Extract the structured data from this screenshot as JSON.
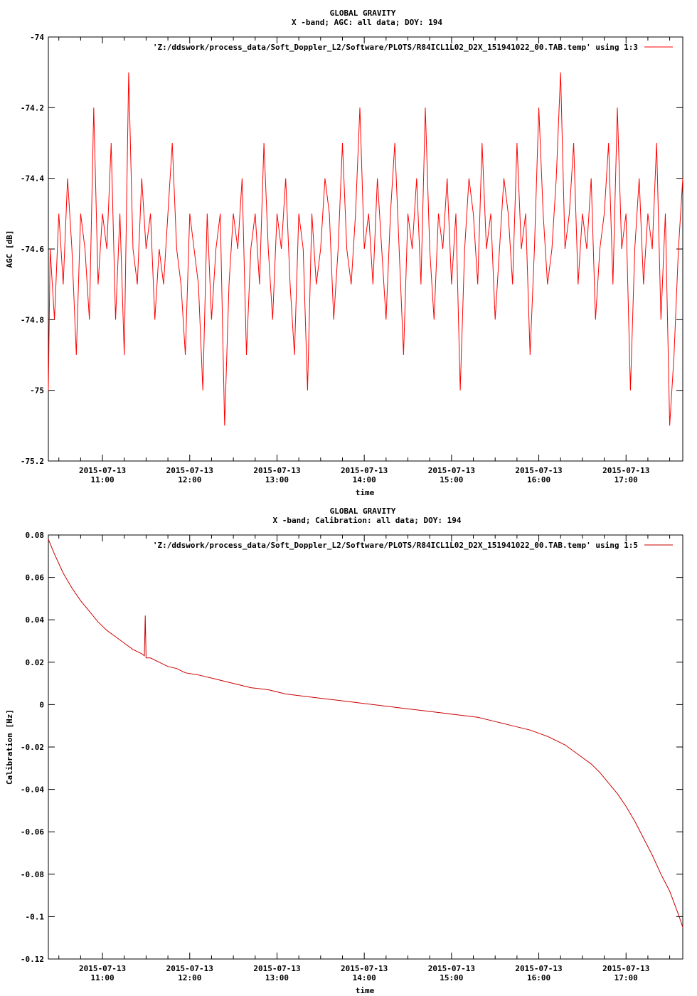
{
  "chart_data": [
    {
      "type": "line",
      "title": "GLOBAL GRAVITY",
      "subtitle": "X -band; AGC: all data; DOY: 194",
      "xlabel": "time",
      "ylabel": "AGC [dB]",
      "legend_entry": "'Z:/ddswork/process_data/Soft_Doppler_L2/Software/PLOTS/R84ICL1L02_D2X_151941022_00.TAB.temp' using 1:3",
      "legend_position": "top-right",
      "color": "#ff0000",
      "xlim_hours": [
        10.38,
        17.65
      ],
      "ylim": [
        -75.2,
        -74.0
      ],
      "yticks": [
        -74,
        -74.2,
        -74.4,
        -74.6,
        -74.8,
        -75,
        -75.2
      ],
      "ytick_labels": [
        "-74",
        "-74.2",
        "-74.4",
        "-74.6",
        "-74.8",
        "-75",
        "-75.2"
      ],
      "xticks_hours": [
        11,
        12,
        13,
        14,
        15,
        16,
        17
      ],
      "xtick_date": "2015-07-13",
      "xtick_times": [
        "11:00",
        "12:00",
        "13:00",
        "14:00",
        "15:00",
        "16:00",
        "17:00"
      ],
      "description_level": -74.6,
      "series": [
        {
          "x_hours": [
            10.38,
            10.4,
            10.45,
            10.5,
            10.55,
            10.6,
            10.65,
            10.7,
            10.75,
            10.8,
            10.85,
            10.9,
            10.95,
            11.0,
            11.05,
            11.1,
            11.15,
            11.2,
            11.25,
            11.3,
            11.35,
            11.4,
            11.45,
            11.5,
            11.55,
            11.6,
            11.65,
            11.7,
            11.75,
            11.8,
            11.85,
            11.9,
            11.95,
            12.0,
            12.05,
            12.1,
            12.15,
            12.2,
            12.25,
            12.3,
            12.35,
            12.4,
            12.45,
            12.5,
            12.55,
            12.6,
            12.65,
            12.7,
            12.75,
            12.8,
            12.85,
            12.9,
            12.95,
            13.0,
            13.05,
            13.1,
            13.15,
            13.2,
            13.25,
            13.3,
            13.35,
            13.4,
            13.45,
            13.5,
            13.55,
            13.6,
            13.65,
            13.7,
            13.75,
            13.8,
            13.85,
            13.9,
            13.95,
            14.0,
            14.05,
            14.1,
            14.15,
            14.2,
            14.25,
            14.3,
            14.35,
            14.4,
            14.45,
            14.5,
            14.55,
            14.6,
            14.65,
            14.7,
            14.75,
            14.8,
            14.85,
            14.9,
            14.95,
            15.0,
            15.05,
            15.1,
            15.15,
            15.2,
            15.25,
            15.3,
            15.35,
            15.4,
            15.45,
            15.5,
            15.55,
            15.6,
            15.65,
            15.7,
            15.75,
            15.8,
            15.85,
            15.9,
            15.95,
            16.0,
            16.05,
            16.1,
            16.15,
            16.2,
            16.25,
            16.3,
            16.35,
            16.4,
            16.45,
            16.5,
            16.55,
            16.6,
            16.65,
            16.7,
            16.75,
            16.8,
            16.85,
            16.9,
            16.95,
            17.0,
            17.05,
            17.1,
            17.15,
            17.2,
            17.25,
            17.3,
            17.35,
            17.4,
            17.45,
            17.5,
            17.55,
            17.6,
            17.65
          ],
          "values": [
            -75.0,
            -74.6,
            -74.8,
            -74.5,
            -74.7,
            -74.4,
            -74.6,
            -74.9,
            -74.5,
            -74.6,
            -74.8,
            -74.2,
            -74.7,
            -74.5,
            -74.6,
            -74.3,
            -74.8,
            -74.5,
            -74.9,
            -74.1,
            -74.6,
            -74.7,
            -74.4,
            -74.6,
            -74.5,
            -74.8,
            -74.6,
            -74.7,
            -74.5,
            -74.3,
            -74.6,
            -74.7,
            -74.9,
            -74.5,
            -74.6,
            -74.7,
            -75.0,
            -74.5,
            -74.8,
            -74.6,
            -74.5,
            -75.1,
            -74.7,
            -74.5,
            -74.6,
            -74.4,
            -74.9,
            -74.6,
            -74.5,
            -74.7,
            -74.3,
            -74.6,
            -74.8,
            -74.5,
            -74.6,
            -74.4,
            -74.7,
            -74.9,
            -74.5,
            -74.6,
            -75.0,
            -74.5,
            -74.7,
            -74.6,
            -74.4,
            -74.5,
            -74.8,
            -74.6,
            -74.3,
            -74.6,
            -74.7,
            -74.5,
            -74.2,
            -74.6,
            -74.5,
            -74.7,
            -74.4,
            -74.6,
            -74.8,
            -74.5,
            -74.3,
            -74.6,
            -74.9,
            -74.5,
            -74.6,
            -74.4,
            -74.7,
            -74.2,
            -74.6,
            -74.8,
            -74.5,
            -74.6,
            -74.4,
            -74.7,
            -74.5,
            -75.0,
            -74.6,
            -74.4,
            -74.5,
            -74.7,
            -74.3,
            -74.6,
            -74.5,
            -74.8,
            -74.6,
            -74.4,
            -74.5,
            -74.7,
            -74.3,
            -74.6,
            -74.5,
            -74.9,
            -74.6,
            -74.2,
            -74.5,
            -74.7,
            -74.6,
            -74.4,
            -74.1,
            -74.6,
            -74.5,
            -74.3,
            -74.7,
            -74.5,
            -74.6,
            -74.4,
            -74.8,
            -74.6,
            -74.5,
            -74.3,
            -74.7,
            -74.2,
            -74.6,
            -74.5,
            -75.0,
            -74.6,
            -74.4,
            -74.7,
            -74.5,
            -74.6,
            -74.3,
            -74.8,
            -74.5,
            -75.1,
            -74.9,
            -74.6,
            -74.4
          ]
        }
      ]
    },
    {
      "type": "line",
      "title": "GLOBAL GRAVITY",
      "subtitle": "X -band; Calibration: all data; DOY: 194",
      "xlabel": "time",
      "ylabel": "Calibration [Hz]",
      "legend_entry": "'Z:/ddswork/process_data/Soft_Doppler_L2/Software/PLOTS/R84ICL1L02_D2X_151941022_00.TAB.temp' using 1:5",
      "legend_position": "top-right",
      "color": "#cc0000",
      "xlim_hours": [
        10.38,
        17.65
      ],
      "ylim": [
        -0.12,
        0.08
      ],
      "yticks": [
        0.08,
        0.06,
        0.04,
        0.02,
        0,
        -0.02,
        -0.04,
        -0.06,
        -0.08,
        -0.1,
        -0.12
      ],
      "ytick_labels": [
        "0.08",
        "0.06",
        "0.04",
        "0.02",
        "0",
        "-0.02",
        "-0.04",
        "-0.06",
        "-0.08",
        "-0.1",
        "-0.12"
      ],
      "xticks_hours": [
        11,
        12,
        13,
        14,
        15,
        16,
        17
      ],
      "xtick_date": "2015-07-13",
      "xtick_times": [
        "11:00",
        "12:00",
        "13:00",
        "14:00",
        "15:00",
        "16:00",
        "17:00"
      ],
      "series": [
        {
          "x_hours": [
            10.38,
            10.45,
            10.55,
            10.65,
            10.75,
            10.85,
            10.95,
            11.05,
            11.15,
            11.25,
            11.35,
            11.45,
            11.48,
            11.49,
            11.5,
            11.51,
            11.55,
            11.65,
            11.75,
            11.85,
            11.95,
            12.1,
            12.3,
            12.5,
            12.7,
            12.9,
            13.1,
            13.3,
            13.5,
            13.7,
            13.9,
            14.1,
            14.3,
            14.5,
            14.7,
            14.9,
            15.1,
            15.3,
            15.5,
            15.7,
            15.9,
            16.1,
            16.3,
            16.5,
            16.6,
            16.7,
            16.8,
            16.9,
            17.0,
            17.1,
            17.2,
            17.3,
            17.4,
            17.5,
            17.6,
            17.65
          ],
          "values": [
            0.078,
            0.071,
            0.062,
            0.055,
            0.049,
            0.044,
            0.039,
            0.035,
            0.032,
            0.029,
            0.026,
            0.024,
            0.023,
            0.042,
            0.022,
            0.022,
            0.022,
            0.02,
            0.018,
            0.017,
            0.015,
            0.014,
            0.012,
            0.01,
            0.008,
            0.007,
            0.005,
            0.004,
            0.003,
            0.002,
            0.001,
            0.0,
            -0.001,
            -0.002,
            -0.003,
            -0.004,
            -0.005,
            -0.006,
            -0.008,
            -0.01,
            -0.012,
            -0.015,
            -0.019,
            -0.025,
            -0.028,
            -0.032,
            -0.037,
            -0.042,
            -0.048,
            -0.055,
            -0.063,
            -0.071,
            -0.08,
            -0.088,
            -0.099,
            -0.105
          ]
        }
      ]
    }
  ]
}
